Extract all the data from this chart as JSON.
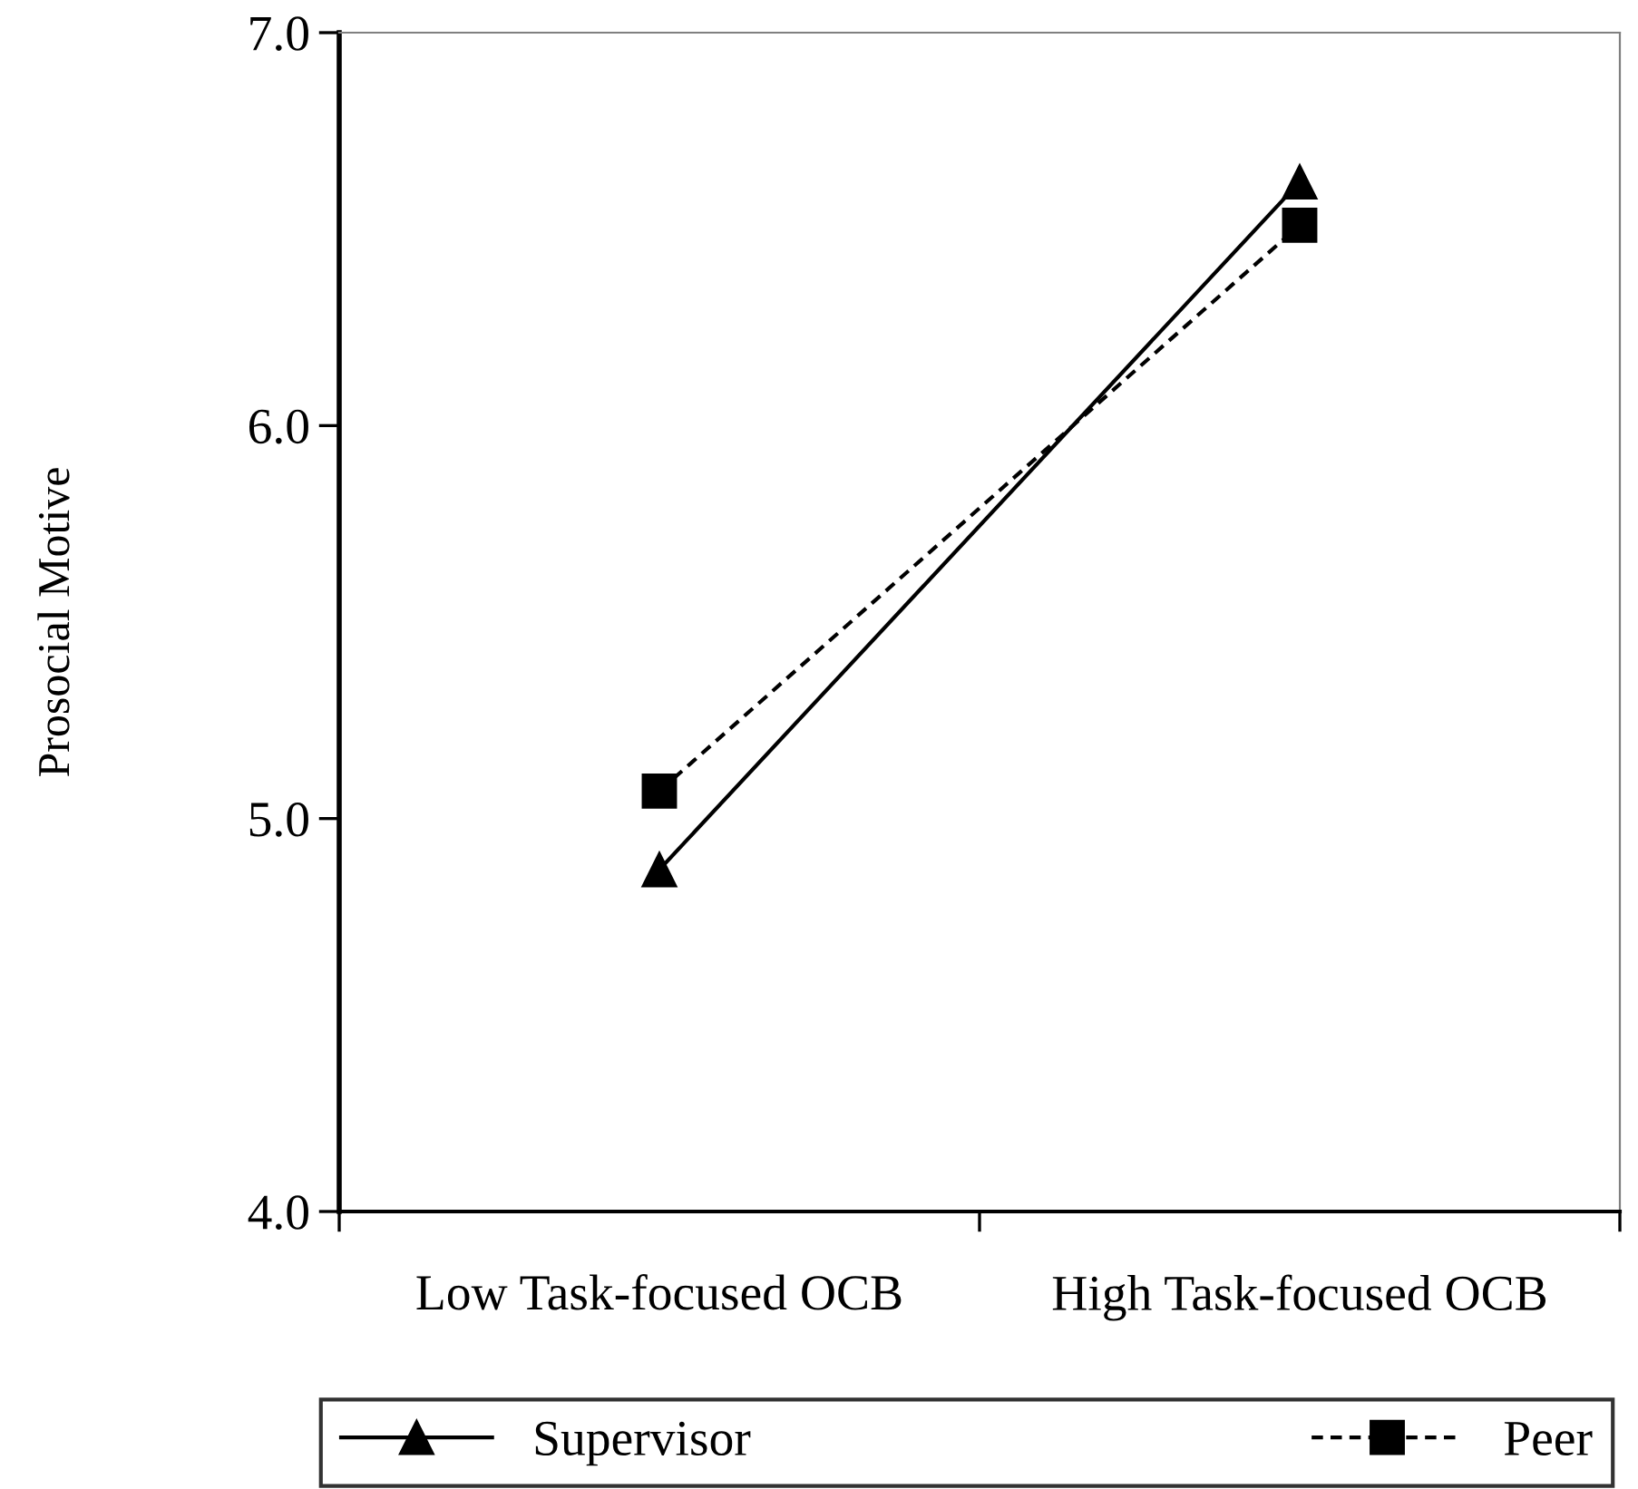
{
  "chart_data": {
    "type": "line",
    "ylabel": "Prosocial Motive",
    "categories": [
      "Low Task-focused OCB",
      "High Task-focused OCB"
    ],
    "series": [
      {
        "name": "Supervisor",
        "color": "#000000",
        "values": [
          4.87,
          6.62
        ],
        "marker": "triangle",
        "line_style": "solid"
      },
      {
        "name": "Peer",
        "color": "#000000",
        "values": [
          5.07,
          6.51
        ],
        "marker": "square",
        "line_style": "dashed"
      }
    ],
    "ylim": [
      4.0,
      7.0
    ],
    "yticks": [
      {
        "value": 4,
        "label": "4.0"
      },
      {
        "value": 5,
        "label": "5.0"
      },
      {
        "value": 6,
        "label": "6.0"
      },
      {
        "value": 7,
        "label": "7.0"
      }
    ],
    "grid": false,
    "legend": "bottom"
  }
}
